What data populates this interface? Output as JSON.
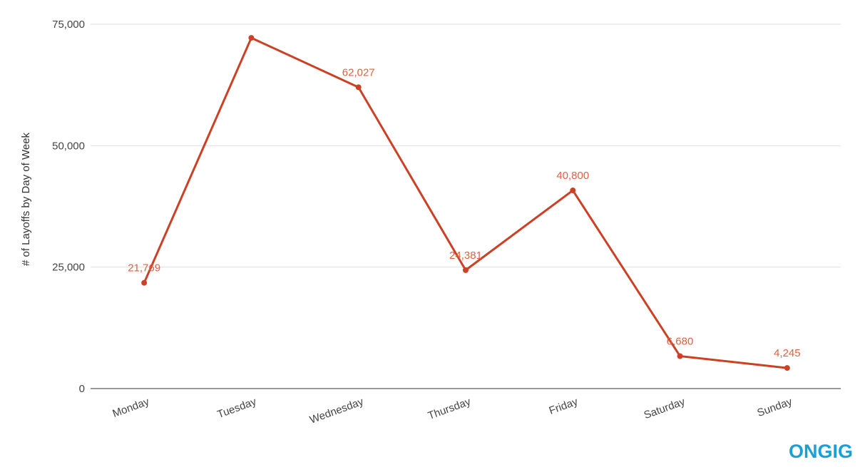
{
  "logo": {
    "text": "ONGIG",
    "color": "#1a9fd6"
  },
  "chart_data": {
    "type": "line",
    "title": "",
    "xlabel": "",
    "ylabel": "# of Layoffs by Day of Week",
    "categories": [
      "Monday",
      "Tuesday",
      "Wednesday",
      "Thursday",
      "Friday",
      "Saturday",
      "Sunday"
    ],
    "series": [
      {
        "values": [
          21769,
          72200,
          62027,
          24381,
          40800,
          6680,
          4245
        ],
        "data_labels": [
          "21,769",
          "",
          "62,027",
          "24,381",
          "40,800",
          "6,680",
          "4,245"
        ],
        "color": "#cc4125",
        "label_color": "#e06043"
      }
    ],
    "ylim": [
      0,
      75000
    ],
    "yticks": [
      0,
      25000,
      50000,
      75000
    ],
    "ytick_labels": [
      "0",
      "25,000",
      "50,000",
      "75,000"
    ],
    "grid": true,
    "legend": "none"
  }
}
